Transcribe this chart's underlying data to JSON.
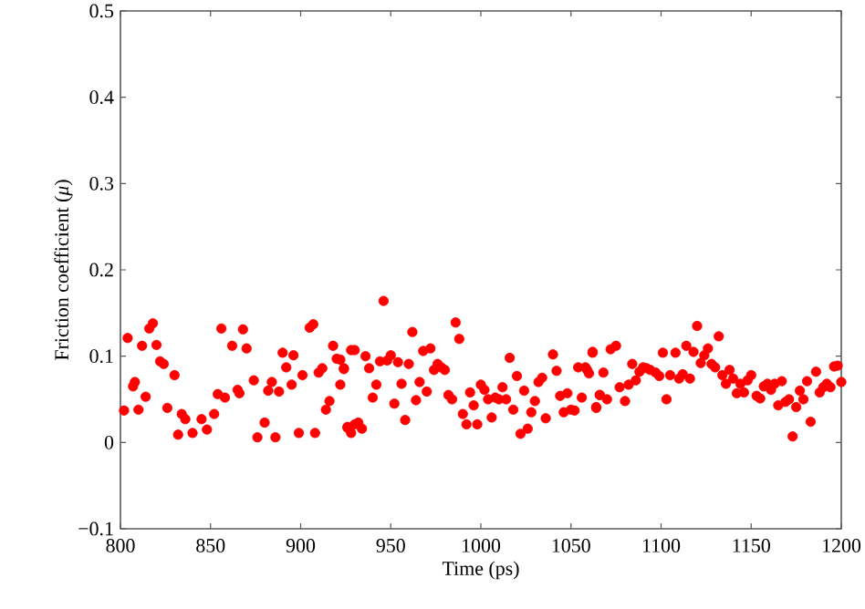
{
  "chart_data": {
    "type": "scatter",
    "xlabel": "Time (ps)",
    "ylabel": "Friction coefficient (*μ*)",
    "xlim": [
      800,
      1200
    ],
    "xticks": [
      800,
      850,
      900,
      950,
      1000,
      1050,
      1100,
      1150,
      1200
    ],
    "ylim": [
      -0.1,
      0.5
    ],
    "yticks": [
      {
        "value": -0.1,
        "label": "−0.1"
      },
      0,
      0.1,
      0.2,
      0.3,
      0.4,
      0.5
    ],
    "marker": "circle",
    "series": [
      {
        "color": "#ff0000",
        "x": [
          802,
          804,
          807,
          808,
          810,
          812,
          814,
          816,
          818,
          820,
          822,
          824,
          826,
          830,
          832,
          834,
          836,
          840,
          845,
          848,
          852,
          854,
          856,
          858,
          862,
          865,
          866,
          868,
          870,
          874,
          876,
          880,
          882,
          884,
          886,
          888,
          890,
          892,
          895,
          896,
          899,
          901,
          905,
          907,
          908,
          910,
          912,
          914,
          916,
          918,
          920,
          922,
          924,
          926,
          928,
          930,
          922,
          924,
          926,
          928,
          930,
          932,
          934,
          936,
          938,
          940,
          942,
          944,
          946,
          948,
          950,
          952,
          954,
          956,
          958,
          960,
          962,
          964,
          966,
          968,
          970,
          972,
          974,
          976,
          978,
          980,
          982,
          984,
          986,
          988,
          990,
          992,
          994,
          996,
          998,
          1000,
          1002,
          1004,
          1006,
          1008,
          1010,
          1012,
          1014,
          1016,
          1018,
          1020,
          1022,
          1024,
          1026,
          1028,
          1030,
          1032,
          1034,
          1036,
          1040,
          1042,
          1044,
          1046,
          1048,
          1050,
          1052,
          1054,
          1056,
          1058,
          1060,
          1062,
          1064,
          1066,
          1059,
          1062,
          1064,
          1066,
          1068,
          1070,
          1072,
          1075,
          1077,
          1080,
          1082,
          1084,
          1086,
          1088,
          1090,
          1092,
          1094,
          1097,
          1099,
          1101,
          1103,
          1105,
          1108,
          1110,
          1112,
          1114,
          1116,
          1118,
          1120,
          1122,
          1124,
          1126,
          1128,
          1130,
          1132,
          1134,
          1136,
          1138,
          1140,
          1142,
          1144,
          1146,
          1148,
          1150,
          1153,
          1155,
          1157,
          1159,
          1161,
          1163,
          1165,
          1167,
          1169,
          1171,
          1173,
          1175,
          1177,
          1179,
          1181,
          1183,
          1186,
          1188,
          1190,
          1192,
          1194,
          1196,
          1198,
          1200
        ],
        "values": [
          0.037,
          0.121,
          0.065,
          0.07,
          0.038,
          0.112,
          0.053,
          0.132,
          0.138,
          0.113,
          0.094,
          0.091,
          0.04,
          0.078,
          0.009,
          0.033,
          0.027,
          0.011,
          0.027,
          0.015,
          0.033,
          0.056,
          0.132,
          0.052,
          0.112,
          0.061,
          0.057,
          0.131,
          0.109,
          0.072,
          0.006,
          0.023,
          0.06,
          0.07,
          0.006,
          0.059,
          0.104,
          0.087,
          0.067,
          0.101,
          0.011,
          0.078,
          0.133,
          0.137,
          0.011,
          0.081,
          0.086,
          0.038,
          0.048,
          0.112,
          0.097,
          0.067,
          0.085,
          0.018,
          0.107,
          0.021,
          0.096,
          0.086,
          0.017,
          0.011,
          0.107,
          0.023,
          0.016,
          0.1,
          0.086,
          0.052,
          0.067,
          0.094,
          0.164,
          0.095,
          0.101,
          0.045,
          0.093,
          0.068,
          0.026,
          0.091,
          0.128,
          0.049,
          0.07,
          0.106,
          0.059,
          0.109,
          0.084,
          0.091,
          0.087,
          0.084,
          0.055,
          0.05,
          0.139,
          0.12,
          0.033,
          0.021,
          0.058,
          0.043,
          0.021,
          0.067,
          0.061,
          0.05,
          0.029,
          0.052,
          0.05,
          0.064,
          0.05,
          0.098,
          0.038,
          0.077,
          0.01,
          0.06,
          0.016,
          0.035,
          0.048,
          0.07,
          0.075,
          0.028,
          0.102,
          0.083,
          0.054,
          0.035,
          0.057,
          0.038,
          0.037,
          0.087,
          0.052,
          0.087,
          0.08,
          0.104,
          0.041,
          0.055,
          0.084,
          0.105,
          0.04,
          0.055,
          0.081,
          0.05,
          0.108,
          0.112,
          0.064,
          0.048,
          0.067,
          0.091,
          0.072,
          0.082,
          0.087,
          0.086,
          0.084,
          0.081,
          0.077,
          0.104,
          0.05,
          0.078,
          0.104,
          0.074,
          0.079,
          0.112,
          0.074,
          0.105,
          0.135,
          0.092,
          0.101,
          0.109,
          0.091,
          0.087,
          0.123,
          0.078,
          0.068,
          0.084,
          0.074,
          0.057,
          0.068,
          0.058,
          0.072,
          0.078,
          0.054,
          0.051,
          0.065,
          0.068,
          0.061,
          0.068,
          0.043,
          0.071,
          0.047,
          0.05,
          0.007,
          0.041,
          0.06,
          0.05,
          0.071,
          0.024,
          0.082,
          0.058,
          0.064,
          0.068,
          0.064,
          0.088,
          0.089,
          0.07
        ]
      }
    ]
  }
}
